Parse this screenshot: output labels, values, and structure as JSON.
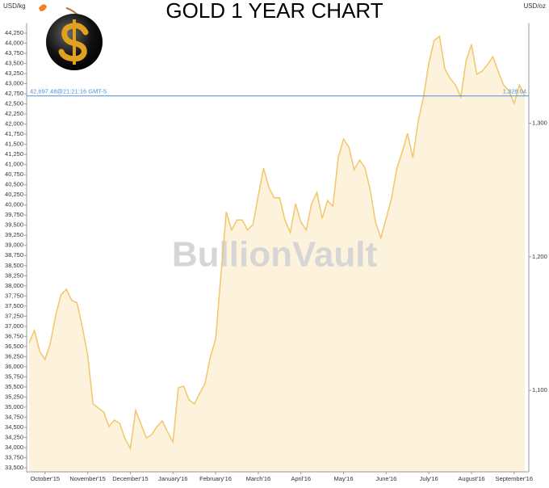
{
  "chart_data": {
    "type": "area",
    "title": "GOLD 1 YEAR CHART",
    "y_axis_label": "USD/kg",
    "y2_axis_label": "USD/oz",
    "watermark": "BullionVault",
    "color": "#f2c66a",
    "fill_color": "#fdf2dc",
    "current_value": 42697.48,
    "current_label": "42,697.48@21:21:16 GMT-5",
    "current_y2_label": "1,328.04",
    "current_color": "#4a90d9",
    "categories": [
      null,
      null,
      null,
      "October'15",
      null,
      null,
      null,
      null,
      null,
      null,
      null,
      "November'15",
      null,
      null,
      null,
      null,
      null,
      null,
      null,
      "December'15",
      null,
      null,
      null,
      null,
      null,
      null,
      null,
      "January'16",
      null,
      null,
      null,
      null,
      null,
      null,
      null,
      "February'16",
      null,
      null,
      null,
      null,
      null,
      null,
      null,
      "March'16",
      null,
      null,
      null,
      null,
      null,
      null,
      null,
      "April'16",
      null,
      null,
      null,
      null,
      null,
      null,
      null,
      "May'16",
      null,
      null,
      null,
      null,
      null,
      null,
      null,
      "June'16",
      null,
      null,
      null,
      null,
      null,
      null,
      null,
      "July'16",
      null,
      null,
      null,
      null,
      null,
      null,
      null,
      "August'16",
      null,
      null,
      null,
      null,
      null,
      null,
      null,
      "September'16",
      null,
      null
    ],
    "values": [
      36580,
      36900,
      36380,
      36180,
      36580,
      37280,
      37780,
      37920,
      37640,
      37580,
      36980,
      36280,
      35080,
      34980,
      34880,
      34520,
      34680,
      34600,
      34220,
      33980,
      34920,
      34580,
      34240,
      34320,
      34520,
      34660,
      34380,
      34140,
      35480,
      35520,
      35180,
      35080,
      35340,
      35580,
      36240,
      36680,
      38280,
      39830,
      39380,
      39630,
      39630,
      39380,
      39520,
      40230,
      40910,
      40430,
      40180,
      40180,
      39630,
      39320,
      40030,
      39580,
      39380,
      40030,
      40310,
      39670,
      40110,
      39970,
      41170,
      41630,
      41430,
      40870,
      41110,
      40930,
      40370,
      39580,
      39180,
      39670,
      40170,
      40910,
      41310,
      41770,
      41170,
      42070,
      42670,
      43510,
      44070,
      44170,
      43370,
      43130,
      42970,
      42670,
      43570,
      43970,
      43230,
      43310,
      43470,
      43670,
      43310,
      42970,
      42830,
      42510,
      42970,
      42700
    ],
    "ylim": [
      33400,
      44500
    ],
    "yticks": [
      {
        "value": 33500,
        "label": "33,500"
      },
      {
        "value": 33750,
        "label": "33,750"
      },
      {
        "value": 34000,
        "label": "34,000"
      },
      {
        "value": 34250,
        "label": "34,250"
      },
      {
        "value": 34500,
        "label": "34,500"
      },
      {
        "value": 34750,
        "label": "34,750"
      },
      {
        "value": 35000,
        "label": "35,000"
      },
      {
        "value": 35250,
        "label": "35,250"
      },
      {
        "value": 35500,
        "label": "35,500"
      },
      {
        "value": 35750,
        "label": "35,750"
      },
      {
        "value": 36000,
        "label": "36,000"
      },
      {
        "value": 36250,
        "label": "36,250"
      },
      {
        "value": 36500,
        "label": "36,500"
      },
      {
        "value": 36750,
        "label": "36,750"
      },
      {
        "value": 37000,
        "label": "37,000"
      },
      {
        "value": 37250,
        "label": "37,250"
      },
      {
        "value": 37500,
        "label": "37,500"
      },
      {
        "value": 37750,
        "label": "37,750"
      },
      {
        "value": 38000,
        "label": "38,000"
      },
      {
        "value": 38250,
        "label": "38,250"
      },
      {
        "value": 38500,
        "label": "38,500"
      },
      {
        "value": 38750,
        "label": "38,750"
      },
      {
        "value": 39000,
        "label": "39,000"
      },
      {
        "value": 39250,
        "label": "39,250"
      },
      {
        "value": 39500,
        "label": "39,500"
      },
      {
        "value": 39750,
        "label": "39,750"
      },
      {
        "value": 40000,
        "label": "40,000"
      },
      {
        "value": 40250,
        "label": "40,250"
      },
      {
        "value": 40500,
        "label": "40,500"
      },
      {
        "value": 40750,
        "label": "40,750"
      },
      {
        "value": 41000,
        "label": "41,000"
      },
      {
        "value": 41250,
        "label": "41,250"
      },
      {
        "value": 41500,
        "label": "41,500"
      },
      {
        "value": 41750,
        "label": "41,750"
      },
      {
        "value": 42000,
        "label": "42,000"
      },
      {
        "value": 42250,
        "label": "42,250"
      },
      {
        "value": 42500,
        "label": "42,500"
      },
      {
        "value": 42750,
        "label": "42,750"
      },
      {
        "value": 43000,
        "label": "43,000"
      },
      {
        "value": 43250,
        "label": "43,250"
      },
      {
        "value": 43500,
        "label": "43,500"
      },
      {
        "value": 43750,
        "label": "43,750"
      },
      {
        "value": 44000,
        "label": "44,000"
      },
      {
        "value": 44250,
        "label": "44,250"
      }
    ],
    "y2lim": [
      1039,
      1375
    ],
    "y2ticks": [
      {
        "value": 1100,
        "label": "1,100"
      },
      {
        "value": 1200,
        "label": "1,200"
      },
      {
        "value": 1300,
        "label": "1,300"
      }
    ]
  }
}
